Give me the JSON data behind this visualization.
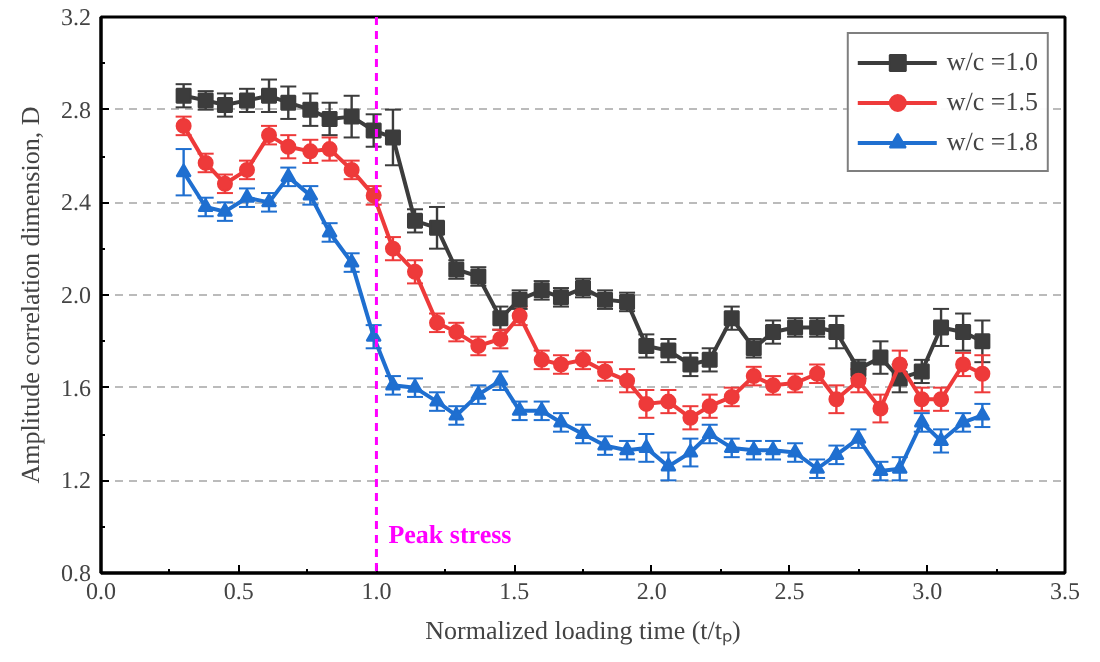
{
  "chart_data": {
    "type": "line",
    "xlabel": "Normalized loading time (t/tₚ)",
    "ylabel": "Amplitude correlation dimension, D",
    "x": [
      0.3,
      0.38,
      0.45,
      0.53,
      0.61,
      0.68,
      0.76,
      0.83,
      0.91,
      0.99,
      1.06,
      1.14,
      1.22,
      1.29,
      1.37,
      1.45,
      1.52,
      1.6,
      1.67,
      1.75,
      1.83,
      1.91,
      1.98,
      2.06,
      2.14,
      2.21,
      2.29,
      2.37,
      2.44,
      2.52,
      2.6,
      2.67,
      2.75,
      2.83,
      2.9,
      2.98,
      3.05,
      3.13,
      3.2
    ],
    "series": [
      {
        "name": "w/c =1.0",
        "color": "#3c3c3c",
        "marker": "square",
        "values": [
          2.86,
          2.84,
          2.82,
          2.84,
          2.86,
          2.83,
          2.8,
          2.76,
          2.77,
          2.71,
          2.68,
          2.32,
          2.29,
          2.11,
          2.08,
          1.9,
          1.98,
          2.02,
          1.99,
          2.03,
          1.98,
          1.97,
          1.78,
          1.76,
          1.7,
          1.72,
          1.9,
          1.77,
          1.84,
          1.86,
          1.86,
          1.84,
          1.68,
          1.73,
          1.64,
          1.67,
          1.86,
          1.84,
          1.8
        ],
        "errors": [
          0.05,
          0.04,
          0.05,
          0.05,
          0.07,
          0.07,
          0.07,
          0.07,
          0.09,
          0.07,
          0.12,
          0.05,
          0.09,
          0.04,
          0.04,
          0.05,
          0.04,
          0.04,
          0.04,
          0.04,
          0.04,
          0.04,
          0.05,
          0.05,
          0.05,
          0.05,
          0.05,
          0.04,
          0.05,
          0.04,
          0.04,
          0.07,
          0.04,
          0.07,
          0.06,
          0.05,
          0.08,
          0.08,
          0.09
        ]
      },
      {
        "name": "w/c =1.5",
        "color": "#ee3a3a",
        "marker": "circle",
        "values": [
          2.73,
          2.57,
          2.48,
          2.54,
          2.69,
          2.64,
          2.62,
          2.63,
          2.54,
          2.43,
          2.2,
          2.1,
          1.88,
          1.84,
          1.78,
          1.81,
          1.91,
          1.72,
          1.7,
          1.72,
          1.67,
          1.63,
          1.53,
          1.54,
          1.47,
          1.52,
          1.56,
          1.65,
          1.61,
          1.62,
          1.66,
          1.55,
          1.63,
          1.51,
          1.7,
          1.55,
          1.55,
          1.7,
          1.66
        ],
        "errors": [
          0.04,
          0.04,
          0.04,
          0.04,
          0.04,
          0.05,
          0.05,
          0.05,
          0.04,
          0.04,
          0.05,
          0.05,
          0.04,
          0.04,
          0.04,
          0.04,
          0.04,
          0.04,
          0.04,
          0.04,
          0.04,
          0.05,
          0.06,
          0.05,
          0.05,
          0.05,
          0.04,
          0.04,
          0.04,
          0.04,
          0.04,
          0.06,
          0.05,
          0.06,
          0.06,
          0.05,
          0.05,
          0.05,
          0.08
        ]
      },
      {
        "name": "w/c =1.8",
        "color": "#1f6fd0",
        "marker": "triangle",
        "values": [
          2.53,
          2.38,
          2.36,
          2.42,
          2.4,
          2.51,
          2.43,
          2.27,
          2.14,
          1.82,
          1.61,
          1.6,
          1.54,
          1.48,
          1.57,
          1.63,
          1.5,
          1.5,
          1.45,
          1.4,
          1.35,
          1.33,
          1.34,
          1.26,
          1.32,
          1.4,
          1.34,
          1.33,
          1.33,
          1.32,
          1.25,
          1.31,
          1.38,
          1.24,
          1.25,
          1.45,
          1.37,
          1.45,
          1.48
        ],
        "errors": [
          0.1,
          0.04,
          0.04,
          0.04,
          0.04,
          0.04,
          0.04,
          0.04,
          0.04,
          0.05,
          0.04,
          0.04,
          0.04,
          0.04,
          0.04,
          0.04,
          0.04,
          0.04,
          0.04,
          0.04,
          0.04,
          0.04,
          0.06,
          0.06,
          0.06,
          0.04,
          0.04,
          0.04,
          0.04,
          0.04,
          0.04,
          0.04,
          0.04,
          0.04,
          0.05,
          0.04,
          0.05,
          0.04,
          0.05
        ]
      }
    ],
    "xlim": [
      0,
      3.5
    ],
    "xticks": [
      {
        "value": 0,
        "label": "0.0"
      },
      {
        "value": 0.5,
        "label": "0.5"
      },
      {
        "value": 1,
        "label": "1.0"
      },
      {
        "value": 1.5,
        "label": "1.5"
      },
      {
        "value": 2,
        "label": "2.0"
      },
      {
        "value": 2.5,
        "label": "2.5"
      },
      {
        "value": 3,
        "label": "3.0"
      },
      {
        "value": 3.5,
        "label": "3.5"
      }
    ],
    "ylim": [
      0.8,
      3.2
    ],
    "yticks": [
      {
        "value": 0.8,
        "label": "0.8"
      },
      {
        "value": 1.2,
        "label": "1.2"
      },
      {
        "value": 1.6,
        "label": "1.6"
      },
      {
        "value": 2.0,
        "label": "2.0"
      },
      {
        "value": 2.4,
        "label": "2.4"
      },
      {
        "value": 2.8,
        "label": "2.8"
      },
      {
        "value": 3.2,
        "label": "3.2"
      }
    ],
    "ref_lines": [
      {
        "axis": "x",
        "value": 1.0,
        "label": "Peak stress",
        "color": "#ff00ff",
        "line_style": "dashed"
      }
    ],
    "grid": "y",
    "legend": "top right",
    "line_style": "solid"
  }
}
